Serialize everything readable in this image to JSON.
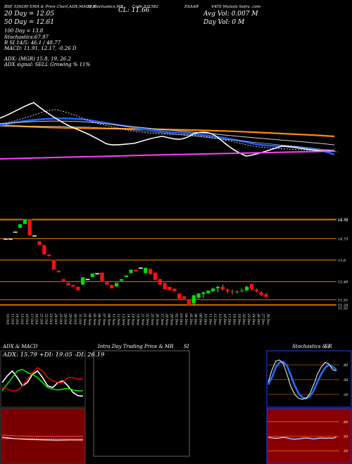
{
  "header": {
    "line1_left": "BSE 539290  EMA & Price Chart,ADX,MACD,R",
    "line1_mid": "SI,Stochastics,MR",
    "line1_cl": "CL: 11.66",
    "line1_code": "Code 531582",
    "line1_right": "ESAAR",
    "line1_stock": "VATS Munafa Sutra .com",
    "line2_ema20": "20 Day = 12.05",
    "line2_avg": "Avg Vol: 0.007 M",
    "line3_ema50": "50 Day = 12.61",
    "line3_dayvol": "Day Vol: 0   M",
    "line4_ema100": "100  Day = 13.8",
    "line5_stoch": "Stochastics:67.97",
    "line6_rsi": "R                SI 14/5: 46.1 / 48.77",
    "line7_macd": "MACD: 11.91, 12.17, -0.26  D",
    "line8_adx": "ADX:                        (MGR) 15.8, 19, 26.2",
    "line9_adx": "ADX  signal: SELL Growing % 11%"
  },
  "chart_data": [
    {
      "type": "candlestick",
      "title": "",
      "dates": [
        "10 Oct",
        "11 Oct",
        "14 Oct",
        "15 Oct",
        "16 Oct",
        "17 Oct",
        "18 Oct",
        "21 Oct",
        "22 Oct",
        "23 Oct",
        "24 Oct",
        "25 Oct",
        "28 Oct",
        "29 Oct",
        "30 Oct",
        "31 Oct",
        "01 Nov",
        "04 Nov",
        "05 Nov",
        "06 Nov",
        "07 Nov",
        "08 Nov",
        "11 Nov",
        "12 Nov",
        "13 Nov",
        "14 Nov",
        "18 Nov",
        "19 Nov",
        "21 Nov",
        "22 Nov",
        "25 Nov",
        "26 Nov",
        "27 Nov",
        "28 Nov",
        "29 Nov",
        "02 Dec",
        "03 Dec",
        "04 Dec",
        "05 Dec",
        "06 Dec",
        "09 Dec",
        "10 Dec",
        "11 Dec",
        "12 Dec",
        "13 Dec",
        "16 Dec",
        "17 Dec",
        "18 Dec",
        "19 Dec",
        "20 Dec",
        "23 Dec",
        "24 Dec",
        "26 Dec",
        "27 Dec",
        "30 Dec"
      ],
      "price_labels": [
        {
          "label": "15.76",
          "value": 15.76
        },
        {
          "label": "15.72",
          "value": 15.72
        },
        {
          "label": "14.73",
          "value": 14.73
        },
        {
          "label": "13.6",
          "value": 13.6
        },
        {
          "label": "12.46",
          "value": 12.46
        },
        {
          "label": "11.51",
          "value": 11.51
        },
        {
          "label": "11.25",
          "value": 11.25
        },
        {
          "label": "11.22",
          "value": 11.22
        }
      ],
      "ylim": [
        11.0,
        16.2
      ],
      "candles": [
        {
          "o": 14.73,
          "h": 14.73,
          "l": 14.73,
          "c": 14.73
        },
        {
          "o": 14.73,
          "h": 14.73,
          "l": 14.73,
          "c": 14.73
        },
        {
          "o": 15.1,
          "h": 15.1,
          "l": 15.1,
          "c": 15.1
        },
        {
          "o": 15.3,
          "h": 15.5,
          "l": 15.3,
          "c": 15.5
        },
        {
          "o": 15.5,
          "h": 15.76,
          "l": 15.5,
          "c": 15.76
        },
        {
          "o": 15.76,
          "h": 15.76,
          "l": 14.9,
          "c": 14.9
        },
        {
          "o": 14.9,
          "h": 14.9,
          "l": 14.9,
          "c": 14.9
        },
        {
          "o": 14.6,
          "h": 14.6,
          "l": 14.4,
          "c": 14.4
        },
        {
          "o": 14.4,
          "h": 14.4,
          "l": 13.9,
          "c": 13.9
        },
        {
          "o": 13.9,
          "h": 13.9,
          "l": 13.8,
          "c": 13.8
        },
        {
          "o": 13.6,
          "h": 13.6,
          "l": 13.1,
          "c": 13.1
        },
        {
          "o": 13.05,
          "h": 13.05,
          "l": 12.95,
          "c": 12.95
        },
        {
          "o": 12.6,
          "h": 12.6,
          "l": 12.45,
          "c": 12.45
        },
        {
          "o": 12.4,
          "h": 12.4,
          "l": 12.25,
          "c": 12.25
        },
        {
          "o": 12.3,
          "h": 12.3,
          "l": 12.2,
          "c": 12.2
        },
        {
          "o": 12.2,
          "h": 12.2,
          "l": 12.0,
          "c": 12.0
        },
        {
          "o": 12.3,
          "h": 12.7,
          "l": 12.3,
          "c": 12.7
        },
        {
          "o": 12.6,
          "h": 12.6,
          "l": 12.6,
          "c": 12.6
        },
        {
          "o": 12.7,
          "h": 12.9,
          "l": 12.7,
          "c": 12.9
        },
        {
          "o": 12.9,
          "h": 12.9,
          "l": 12.9,
          "c": 12.9
        },
        {
          "o": 12.95,
          "h": 12.95,
          "l": 12.45,
          "c": 12.45
        },
        {
          "o": 12.45,
          "h": 12.45,
          "l": 12.3,
          "c": 12.3
        },
        {
          "o": 12.3,
          "h": 12.3,
          "l": 12.1,
          "c": 12.1
        },
        {
          "o": 12.2,
          "h": 12.4,
          "l": 12.2,
          "c": 12.4
        },
        {
          "o": 12.5,
          "h": 12.6,
          "l": 12.5,
          "c": 12.6
        },
        {
          "o": 12.7,
          "h": 12.8,
          "l": 12.7,
          "c": 12.8
        },
        {
          "o": 12.9,
          "h": 13.1,
          "l": 12.9,
          "c": 13.1
        },
        {
          "o": 13.1,
          "h": 13.1,
          "l": 13.0,
          "c": 13.0
        },
        {
          "o": 13.2,
          "h": 13.2,
          "l": 13.2,
          "c": 13.2
        },
        {
          "o": 12.9,
          "h": 13.2,
          "l": 12.9,
          "c": 13.2
        },
        {
          "o": 13.15,
          "h": 13.15,
          "l": 12.85,
          "c": 12.85
        },
        {
          "o": 12.95,
          "h": 12.95,
          "l": 12.55,
          "c": 12.55
        },
        {
          "o": 12.6,
          "h": 12.6,
          "l": 12.3,
          "c": 12.3
        },
        {
          "o": 12.4,
          "h": 12.4,
          "l": 12.05,
          "c": 12.05
        },
        {
          "o": 12.2,
          "h": 12.2,
          "l": 12.0,
          "c": 12.0
        },
        {
          "o": 12.1,
          "h": 12.1,
          "l": 11.95,
          "c": 11.95
        },
        {
          "o": 11.85,
          "h": 11.85,
          "l": 11.55,
          "c": 11.55
        },
        {
          "o": 11.7,
          "h": 11.7,
          "l": 11.55,
          "c": 11.55
        },
        {
          "o": 11.5,
          "h": 11.5,
          "l": 11.25,
          "c": 11.25
        },
        {
          "o": 11.3,
          "h": 11.75,
          "l": 11.22,
          "c": 11.75
        },
        {
          "o": 11.6,
          "h": 11.85,
          "l": 11.55,
          "c": 11.85
        },
        {
          "o": 11.8,
          "h": 11.95,
          "l": 11.6,
          "c": 11.9
        },
        {
          "o": 11.85,
          "h": 12.0,
          "l": 11.8,
          "c": 12.0
        },
        {
          "o": 11.95,
          "h": 12.15,
          "l": 11.9,
          "c": 12.1
        },
        {
          "o": 12.1,
          "h": 12.25,
          "l": 11.9,
          "c": 12.2
        },
        {
          "o": 12.2,
          "h": 12.3,
          "l": 12.0,
          "c": 12.05
        },
        {
          "o": 12.05,
          "h": 12.1,
          "l": 11.85,
          "c": 11.95
        },
        {
          "o": 11.95,
          "h": 12.05,
          "l": 11.8,
          "c": 11.9
        },
        {
          "o": 11.9,
          "h": 12.0,
          "l": 11.85,
          "c": 11.95
        },
        {
          "o": 11.95,
          "h": 12.1,
          "l": 11.9,
          "c": 12.0
        },
        {
          "o": 12.0,
          "h": 12.25,
          "l": 11.95,
          "c": 12.2
        },
        {
          "o": 12.35,
          "h": 12.35,
          "l": 12.0,
          "c": 12.05
        },
        {
          "o": 12.05,
          "h": 12.1,
          "l": 11.9,
          "c": 11.95
        },
        {
          "o": 11.9,
          "h": 11.95,
          "l": 11.7,
          "c": 11.75
        },
        {
          "o": 11.8,
          "h": 11.85,
          "l": 11.6,
          "c": 11.66
        }
      ]
    },
    {
      "type": "line",
      "title": "ADX  & MACD",
      "values_text": "ADX: 15.79  +DI: 19.05  -DI: 26.19",
      "series": [
        {
          "name": "ADX",
          "color": "#ffffff",
          "values": [
            24,
            28,
            31,
            27,
            22,
            24,
            29,
            31,
            27,
            22,
            21,
            24,
            25,
            22,
            18,
            16,
            15.8
          ]
        },
        {
          "name": "+DI",
          "color": "#00ff00",
          "values": [
            19,
            23,
            27,
            31,
            32,
            30,
            29,
            27,
            24,
            21,
            20,
            19.5,
            20,
            20.5,
            19.5,
            19,
            19.05
          ]
        },
        {
          "name": "-DI",
          "color": "#ff0000",
          "values": [
            21,
            20,
            19,
            19,
            22,
            26,
            30,
            33,
            31,
            27,
            25,
            24,
            24,
            27,
            27,
            26,
            26.19
          ]
        }
      ],
      "macd_series": [
        {
          "name": "MACD",
          "values": [
            12.1,
            12.0,
            11.95,
            11.92,
            11.9,
            11.91,
            11.91
          ]
        },
        {
          "name": "signal",
          "values": [
            12.25,
            12.2,
            12.18,
            12.17,
            12.17,
            12.17,
            12.17
          ]
        }
      ]
    },
    {
      "type": "line",
      "title": "Intra  Day Trading Price  & MR",
      "title_right": "SI",
      "series": []
    },
    {
      "type": "line",
      "title": "Stochastics & R",
      "title_right": "SI",
      "ylabels": [
        "80",
        "50",
        "20"
      ],
      "rsi_labels": [
        "80",
        "50",
        "20"
      ],
      "series": [
        {
          "name": "%K",
          "color": "#ffffff",
          "values": [
            45,
            70,
            88,
            90,
            82,
            60,
            35,
            20,
            12,
            10,
            12,
            22,
            40,
            62,
            76,
            85,
            82,
            70,
            67.97
          ]
        },
        {
          "name": "%D",
          "color": "#1e6fff",
          "values": [
            40,
            55,
            75,
            85,
            86,
            78,
            58,
            38,
            22,
            14,
            12,
            16,
            28,
            46,
            62,
            74,
            80,
            76,
            70
          ]
        },
        {
          "name": "RSI",
          "color": "#6f6fff",
          "values": [
            48,
            47,
            46,
            47,
            48,
            47,
            45,
            44,
            45,
            46,
            47,
            46,
            45,
            46,
            47,
            46,
            47,
            46.1,
            48.77
          ]
        }
      ]
    }
  ]
}
